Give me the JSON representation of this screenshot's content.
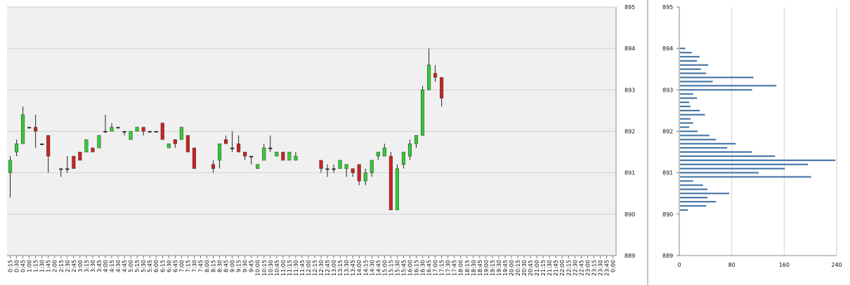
{
  "chart_data": [
    {
      "type": "candlestick",
      "title": "",
      "xlabel": "",
      "ylabel": "",
      "ylim": [
        889,
        895
      ],
      "y_ticks": [
        "889",
        "890",
        "891",
        "892",
        "893",
        "894",
        "895"
      ],
      "grid": true,
      "x_ticks": [
        "0:15",
        "0:30",
        "0:45",
        "1:00",
        "1:15",
        "1:30",
        "1:45",
        "2:00",
        "2:15",
        "2:30",
        "2:45",
        "3:00",
        "3:15",
        "3:30",
        "3:45",
        "4:00",
        "4:15",
        "4:30",
        "4:45",
        "5:00",
        "5:15",
        "5:30",
        "5:45",
        "6:00",
        "6:15",
        "6:30",
        "6:45",
        "7:00",
        "7:15",
        "7:30",
        "7:45",
        "8:00",
        "8:15",
        "8:30",
        "8:45",
        "9:00",
        "9:15",
        "9:30",
        "9:45",
        "10:00",
        "10:15",
        "10:30",
        "10:45",
        "11:00",
        "11:15",
        "11:30",
        "11:45",
        "12:00",
        "12:15",
        "12:30",
        "12:45",
        "13:00",
        "13:15",
        "13:30",
        "13:45",
        "14:00",
        "14:15",
        "14:30",
        "14:45",
        "15:00",
        "15:15",
        "15:30",
        "15:45",
        "16:00",
        "16:15",
        "16:30",
        "16:45",
        "17:00",
        "17:15",
        "17:30",
        "17:45",
        "18:00",
        "18:15",
        "18:30",
        "18:45",
        "19:00",
        "19:15",
        "19:30",
        "19:45",
        "20:00",
        "20:15",
        "20:30",
        "20:45",
        "21:00",
        "21:15",
        "21:30",
        "21:45",
        "22:00",
        "22:15",
        "22:30",
        "22:45",
        "23:00",
        "23:15",
        "23:30",
        "23:45",
        "0:00"
      ],
      "candles": [
        {
          "x": "0:15",
          "open": 891.0,
          "high": 891.4,
          "low": 890.4,
          "close": 891.3
        },
        {
          "x": "0:30",
          "open": 891.5,
          "high": 891.8,
          "low": 891.4,
          "close": 891.7
        },
        {
          "x": "0:45",
          "open": 891.7,
          "high": 892.6,
          "low": 891.7,
          "close": 892.4
        },
        {
          "x": "1:00",
          "open": 892.1,
          "high": 892.1,
          "low": 892.1,
          "close": 892.1
        },
        {
          "x": "1:15",
          "open": 892.1,
          "high": 892.4,
          "low": 891.6,
          "close": 892.0
        },
        {
          "x": "1:30",
          "open": 891.7,
          "high": 891.7,
          "low": 891.7,
          "close": 891.7
        },
        {
          "x": "1:45",
          "open": 891.9,
          "high": 891.9,
          "low": 891.0,
          "close": 891.4
        },
        {
          "x": "2:15",
          "open": 891.1,
          "high": 891.1,
          "low": 890.9,
          "close": 891.1
        },
        {
          "x": "2:30",
          "open": 891.1,
          "high": 891.4,
          "low": 891.0,
          "close": 891.1
        },
        {
          "x": "2:45",
          "open": 891.4,
          "high": 891.4,
          "low": 891.1,
          "close": 891.1
        },
        {
          "x": "3:00",
          "open": 891.5,
          "high": 891.5,
          "low": 891.3,
          "close": 891.3
        },
        {
          "x": "3:15",
          "open": 891.5,
          "high": 891.8,
          "low": 891.5,
          "close": 891.8
        },
        {
          "x": "3:30",
          "open": 891.6,
          "high": 891.6,
          "low": 891.5,
          "close": 891.5
        },
        {
          "x": "3:45",
          "open": 891.6,
          "high": 891.9,
          "low": 891.6,
          "close": 891.9
        },
        {
          "x": "4:00",
          "open": 892.0,
          "high": 892.4,
          "low": 892.0,
          "close": 892.0
        },
        {
          "x": "4:15",
          "open": 892.0,
          "high": 892.2,
          "low": 892.0,
          "close": 892.1
        },
        {
          "x": "4:30",
          "open": 892.1,
          "high": 892.1,
          "low": 892.1,
          "close": 892.1
        },
        {
          "x": "4:45",
          "open": 892.0,
          "high": 892.0,
          "low": 891.9,
          "close": 892.0
        },
        {
          "x": "5:00",
          "open": 891.8,
          "high": 892.0,
          "low": 891.8,
          "close": 892.0
        },
        {
          "x": "5:15",
          "open": 892.0,
          "high": 892.1,
          "low": 892.0,
          "close": 892.1
        },
        {
          "x": "5:30",
          "open": 892.1,
          "high": 892.1,
          "low": 891.9,
          "close": 892.0
        },
        {
          "x": "5:45",
          "open": 892.0,
          "high": 892.0,
          "low": 892.0,
          "close": 892.0
        },
        {
          "x": "6:00",
          "open": 892.0,
          "high": 892.0,
          "low": 892.0,
          "close": 892.0
        },
        {
          "x": "6:15",
          "open": 892.2,
          "high": 892.2,
          "low": 891.8,
          "close": 891.8
        },
        {
          "x": "6:30",
          "open": 891.6,
          "high": 891.7,
          "low": 891.6,
          "close": 891.7
        },
        {
          "x": "6:45",
          "open": 891.8,
          "high": 891.8,
          "low": 891.6,
          "close": 891.7
        },
        {
          "x": "7:00",
          "open": 891.8,
          "high": 892.1,
          "low": 891.8,
          "close": 892.1
        },
        {
          "x": "7:15",
          "open": 891.9,
          "high": 891.9,
          "low": 891.5,
          "close": 891.5
        },
        {
          "x": "7:30",
          "open": 891.6,
          "high": 891.6,
          "low": 891.1,
          "close": 891.1
        },
        {
          "x": "8:15",
          "open": 891.2,
          "high": 891.3,
          "low": 891.0,
          "close": 891.1
        },
        {
          "x": "8:30",
          "open": 891.3,
          "high": 891.7,
          "low": 891.1,
          "close": 891.7
        },
        {
          "x": "8:45",
          "open": 891.8,
          "high": 891.9,
          "low": 891.7,
          "close": 891.7
        },
        {
          "x": "9:00",
          "open": 891.6,
          "high": 892.0,
          "low": 891.5,
          "close": 891.6
        },
        {
          "x": "9:15",
          "open": 891.7,
          "high": 891.9,
          "low": 891.5,
          "close": 891.5
        },
        {
          "x": "9:30",
          "open": 891.5,
          "high": 891.5,
          "low": 891.3,
          "close": 891.4
        },
        {
          "x": "9:45",
          "open": 891.4,
          "high": 891.4,
          "low": 891.2,
          "close": 891.4
        },
        {
          "x": "10:00",
          "open": 891.1,
          "high": 891.2,
          "low": 891.1,
          "close": 891.2
        },
        {
          "x": "10:15",
          "open": 891.3,
          "high": 891.7,
          "low": 891.3,
          "close": 891.6
        },
        {
          "x": "10:30",
          "open": 891.6,
          "high": 891.9,
          "low": 891.5,
          "close": 891.6
        },
        {
          "x": "10:45",
          "open": 891.4,
          "high": 891.5,
          "low": 891.4,
          "close": 891.5
        },
        {
          "x": "11:00",
          "open": 891.5,
          "high": 891.5,
          "low": 891.3,
          "close": 891.3
        },
        {
          "x": "11:15",
          "open": 891.3,
          "high": 891.5,
          "low": 891.3,
          "close": 891.5
        },
        {
          "x": "11:30",
          "open": 891.3,
          "high": 891.5,
          "low": 891.3,
          "close": 891.4
        },
        {
          "x": "12:30",
          "open": 891.3,
          "high": 891.3,
          "low": 891.0,
          "close": 891.1
        },
        {
          "x": "12:45",
          "open": 891.1,
          "high": 891.2,
          "low": 890.9,
          "close": 891.1
        },
        {
          "x": "13:00",
          "open": 891.1,
          "high": 891.2,
          "low": 891.0,
          "close": 891.1
        },
        {
          "x": "13:15",
          "open": 891.1,
          "high": 891.3,
          "low": 891.1,
          "close": 891.3
        },
        {
          "x": "13:30",
          "open": 891.1,
          "high": 891.2,
          "low": 890.9,
          "close": 891.2
        },
        {
          "x": "13:45",
          "open": 891.1,
          "high": 891.1,
          "low": 890.9,
          "close": 891.0
        },
        {
          "x": "14:00",
          "open": 891.2,
          "high": 891.2,
          "low": 890.7,
          "close": 890.8
        },
        {
          "x": "14:15",
          "open": 890.8,
          "high": 891.1,
          "low": 890.7,
          "close": 891.0
        },
        {
          "x": "14:30",
          "open": 891.0,
          "high": 891.3,
          "low": 890.9,
          "close": 891.3
        },
        {
          "x": "14:45",
          "open": 891.4,
          "high": 891.5,
          "low": 891.3,
          "close": 891.5
        },
        {
          "x": "15:00",
          "open": 891.4,
          "high": 891.7,
          "low": 891.4,
          "close": 891.6
        },
        {
          "x": "15:15",
          "open": 891.4,
          "high": 891.5,
          "low": 890.1,
          "close": 890.1
        },
        {
          "x": "15:30",
          "open": 890.1,
          "high": 891.2,
          "low": 890.1,
          "close": 891.1
        },
        {
          "x": "15:45",
          "open": 891.2,
          "high": 891.5,
          "low": 891.1,
          "close": 891.5
        },
        {
          "x": "16:00",
          "open": 891.4,
          "high": 891.8,
          "low": 891.3,
          "close": 891.7
        },
        {
          "x": "16:15",
          "open": 891.7,
          "high": 891.9,
          "low": 891.6,
          "close": 891.9
        },
        {
          "x": "16:30",
          "open": 891.9,
          "high": 893.1,
          "low": 891.9,
          "close": 893.0
        },
        {
          "x": "16:45",
          "open": 893.0,
          "high": 894.0,
          "low": 893.0,
          "close": 893.6
        },
        {
          "x": "17:00",
          "open": 893.4,
          "high": 893.6,
          "low": 893.2,
          "close": 893.3
        },
        {
          "x": "17:15",
          "open": 893.3,
          "high": 893.3,
          "low": 892.6,
          "close": 892.8
        }
      ],
      "bull_color": "#33cc33",
      "bear_color": "#cc2222"
    },
    {
      "type": "bar",
      "orientation": "horizontal",
      "title": "",
      "xlabel": "",
      "ylabel": "",
      "xlim": [
        0,
        240
      ],
      "x_ticks": [
        "0",
        "80",
        "160",
        "240"
      ],
      "ylim": [
        889,
        895
      ],
      "y_ticks": [
        "889",
        "890",
        "891",
        "892",
        "893",
        "894",
        "895"
      ],
      "bar_color": "#4a78a8",
      "categories": [
        894.0,
        893.9,
        893.8,
        893.7,
        893.6,
        893.5,
        893.4,
        893.3,
        893.2,
        893.1,
        893.0,
        892.9,
        892.8,
        892.7,
        892.6,
        892.5,
        892.4,
        892.3,
        892.2,
        892.1,
        892.0,
        891.9,
        891.8,
        891.7,
        891.6,
        891.5,
        891.4,
        891.3,
        891.2,
        891.1,
        891.0,
        890.9,
        890.8,
        890.7,
        890.6,
        890.5,
        890.4,
        890.3,
        890.2,
        890.1
      ],
      "values": [
        8,
        18,
        30,
        26,
        43,
        32,
        40,
        112,
        50,
        147,
        110,
        20,
        26,
        14,
        16,
        30,
        38,
        16,
        20,
        14,
        27,
        45,
        55,
        85,
        72,
        110,
        145,
        237,
        195,
        160,
        120,
        200,
        20,
        35,
        42,
        75,
        42,
        55,
        40,
        12
      ]
    }
  ]
}
